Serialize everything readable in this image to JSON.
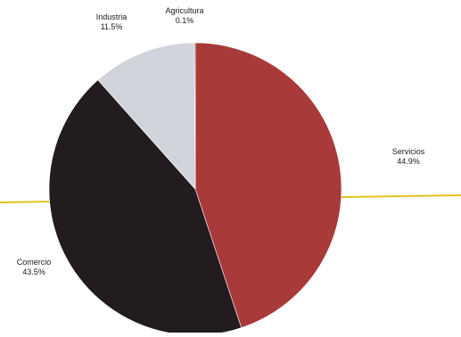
{
  "chart_data": {
    "type": "pie",
    "title": "",
    "start": "12 o'clock",
    "direction": "clockwise",
    "slices": [
      {
        "label": "Servicios",
        "pct_label": "44.9%",
        "value": 44.9,
        "color": "#a83a3a"
      },
      {
        "label": "Comercio",
        "pct_label": "43.5%",
        "value": 43.5,
        "color": "#221b1f"
      },
      {
        "label": "Industria",
        "pct_label": "11.5%",
        "value": 11.5,
        "color": "#d2d4dc"
      },
      {
        "label": "Agricultura",
        "pct_label": "0.1%",
        "value": 0.1,
        "color": "#8a1f1f"
      }
    ],
    "reference_line": {
      "color": "#e6c21f"
    }
  }
}
